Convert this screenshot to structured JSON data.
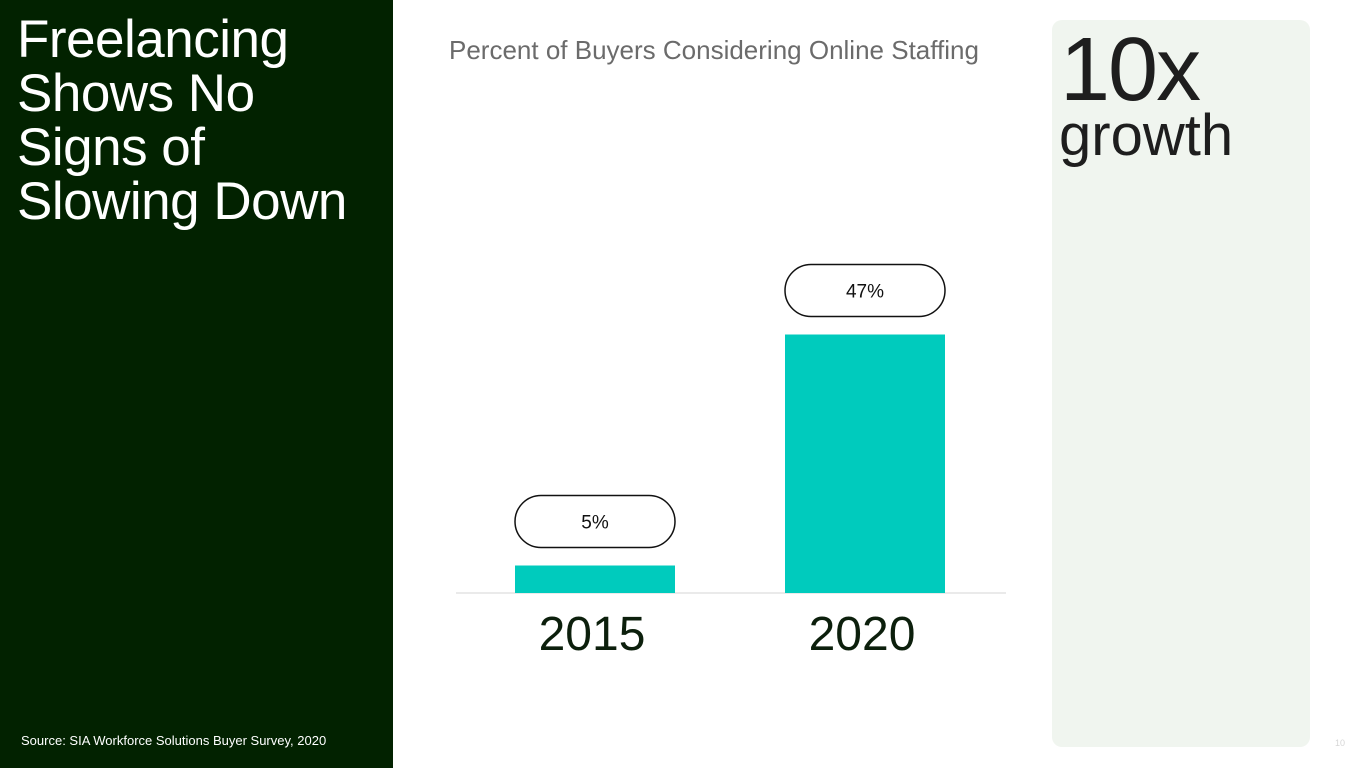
{
  "slide": {
    "title": "Freelancing Shows No Signs of Slowing Down",
    "source": "Source: SIA Workforce Solutions Buyer Survey, 2020",
    "page_number": "10"
  },
  "stat": {
    "value": "10x",
    "label": "growth"
  },
  "colors": {
    "left_panel": "#022200",
    "bar": "#00cbbd",
    "stat_card": "#f0f5ef"
  },
  "chart_data": {
    "type": "bar",
    "title": "Percent of Buyers Considering Online Staffing",
    "categories": [
      "2015",
      "2020"
    ],
    "values": [
      5,
      47
    ],
    "value_labels": [
      "5%",
      "47%"
    ],
    "xlabel": "",
    "ylabel": "",
    "ylim": [
      0,
      100
    ],
    "grid": false
  }
}
